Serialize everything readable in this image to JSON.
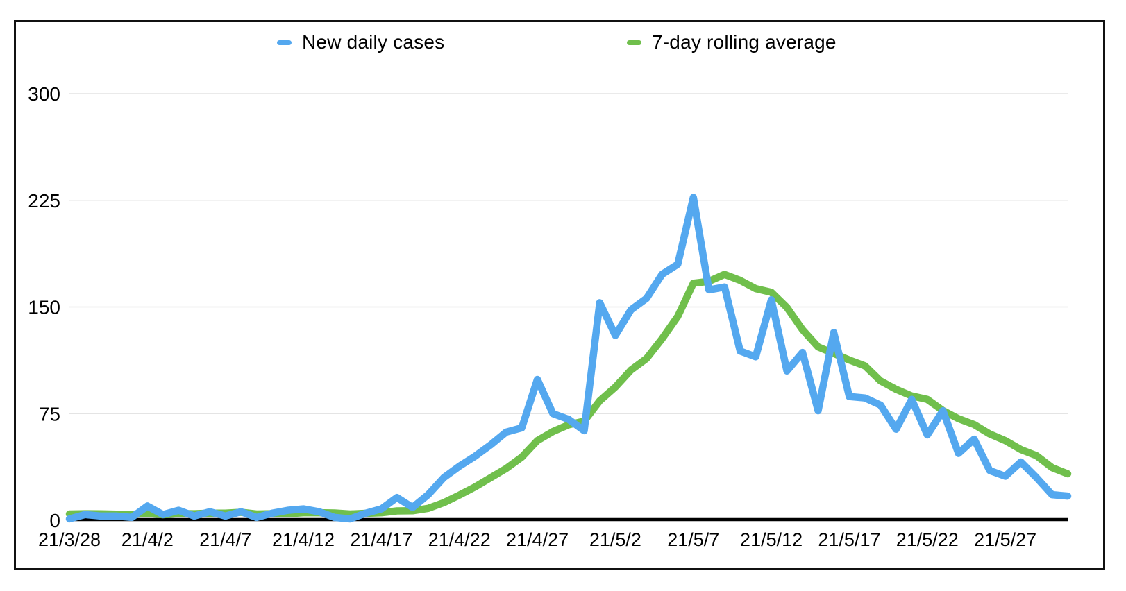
{
  "chart": {
    "legend_items": [
      {
        "label": "New daily cases"
      },
      {
        "label": "7-day rolling average"
      }
    ]
  },
  "chart_data": {
    "type": "line",
    "title": "",
    "xlabel": "",
    "ylabel": "",
    "ylim": [
      0,
      300
    ],
    "yticks": [
      0,
      75,
      150,
      225,
      300
    ],
    "xtick_every": 5,
    "grid": "horizontal",
    "legend_position": "top",
    "gridline_color": "#e4e4e4",
    "axis_color": "#000000",
    "x": [
      "21/3/28",
      "21/3/29",
      "21/3/30",
      "21/3/31",
      "21/4/1",
      "21/4/2",
      "21/4/3",
      "21/4/4",
      "21/4/5",
      "21/4/6",
      "21/4/7",
      "21/4/8",
      "21/4/9",
      "21/4/10",
      "21/4/11",
      "21/4/12",
      "21/4/13",
      "21/4/14",
      "21/4/15",
      "21/4/16",
      "21/4/17",
      "21/4/18",
      "21/4/19",
      "21/4/20",
      "21/4/21",
      "21/4/22",
      "21/4/23",
      "21/4/24",
      "21/4/25",
      "21/4/26",
      "21/4/27",
      "21/4/28",
      "21/4/29",
      "21/4/30",
      "21/5/1",
      "21/5/2",
      "21/5/3",
      "21/5/4",
      "21/5/5",
      "21/5/6",
      "21/5/7",
      "21/5/8",
      "21/5/9",
      "21/5/10",
      "21/5/11",
      "21/5/12",
      "21/5/13",
      "21/5/14",
      "21/5/15",
      "21/5/16",
      "21/5/17",
      "21/5/18",
      "21/5/19",
      "21/5/20",
      "21/5/21",
      "21/5/22",
      "21/5/23",
      "21/5/24",
      "21/5/25",
      "21/5/26",
      "21/5/27",
      "21/5/28",
      "21/5/29",
      "21/5/30",
      "21/5/31"
    ],
    "series": [
      {
        "name": "New daily cases",
        "color": "#54a8ef",
        "stroke_width": 10.5,
        "values": [
          1,
          4,
          3,
          3,
          2,
          10,
          4,
          7,
          3,
          6,
          3,
          6,
          2,
          5,
          7,
          8,
          6,
          2,
          1,
          5,
          8,
          16,
          9,
          18,
          30,
          38,
          45,
          53,
          62,
          65,
          99,
          75,
          71,
          63,
          153,
          130,
          148,
          156,
          173,
          180,
          227,
          162,
          164,
          119,
          115,
          155,
          105,
          118,
          77,
          132,
          87,
          86,
          81,
          64,
          85,
          60,
          77,
          47,
          57,
          35,
          31,
          41,
          30,
          18,
          17
        ]
      },
      {
        "name": "7-day rolling average",
        "color": "#70bf4c",
        "stroke_width": 10.5,
        "values": [
          4.4,
          4.6,
          4.5,
          4.3,
          4.2,
          4.8,
          3.9,
          4.7,
          4.6,
          5.0,
          5.0,
          5.6,
          4.4,
          4.6,
          4.6,
          5.3,
          5.3,
          5.1,
          4.4,
          4.9,
          5.3,
          6.6,
          6.7,
          8.4,
          12.4,
          17.7,
          23.4,
          29.9,
          36.4,
          44.4,
          56.0,
          62.4,
          67.1,
          69.7,
          84.0,
          93.7,
          105.6,
          113.7,
          127.7,
          143.3,
          166.7,
          168.0,
          172.9,
          168.7,
          162.9,
          160.3,
          149.6,
          134.0,
          121.9,
          117.3,
          112.7,
          108.6,
          98.0,
          92.1,
          87.4,
          85.0,
          77.1,
          71.4,
          67.3,
          60.7,
          56.0,
          49.7,
          45.4,
          37.0,
          32.7
        ]
      }
    ]
  }
}
